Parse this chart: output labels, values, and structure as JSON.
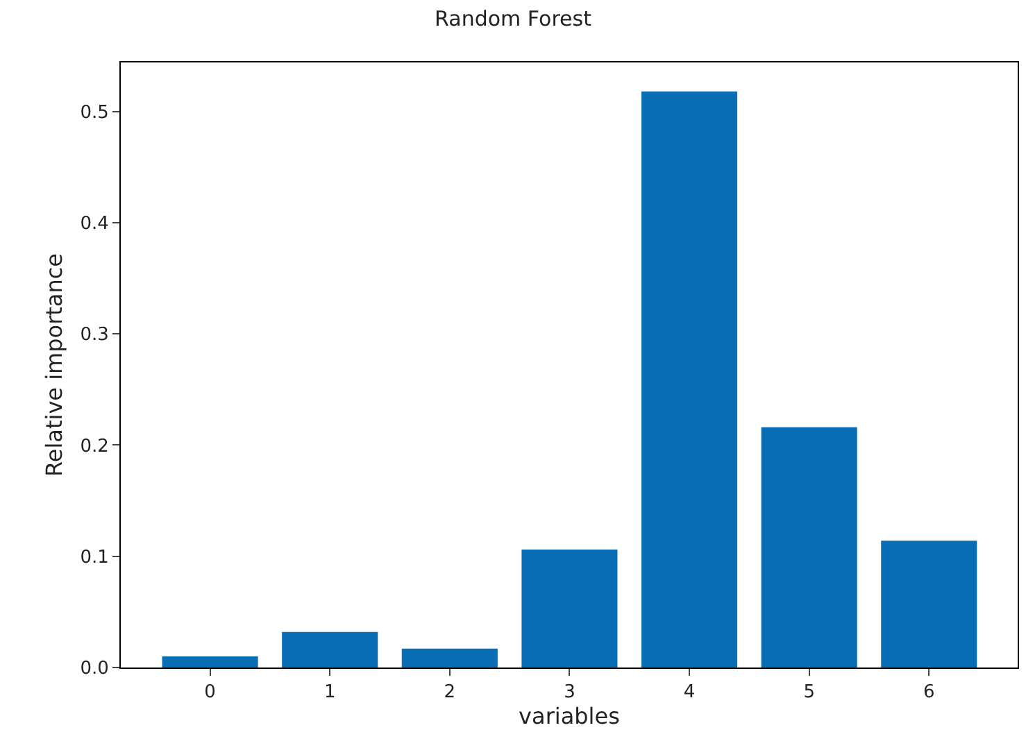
{
  "chart_data": {
    "type": "bar",
    "title": "Random Forest",
    "xlabel": "variables",
    "ylabel": "Relative importance",
    "categories": [
      "0",
      "1",
      "2",
      "3",
      "4",
      "5",
      "6"
    ],
    "values": [
      0.01,
      0.032,
      0.017,
      0.106,
      0.518,
      0.216,
      0.114
    ],
    "color": "#0a6eb4",
    "ylim": [
      0,
      0.544
    ],
    "yticks": [
      {
        "value": 0,
        "label": "0.0"
      },
      0.1,
      0.2,
      0.3,
      0.4,
      0.5
    ]
  }
}
